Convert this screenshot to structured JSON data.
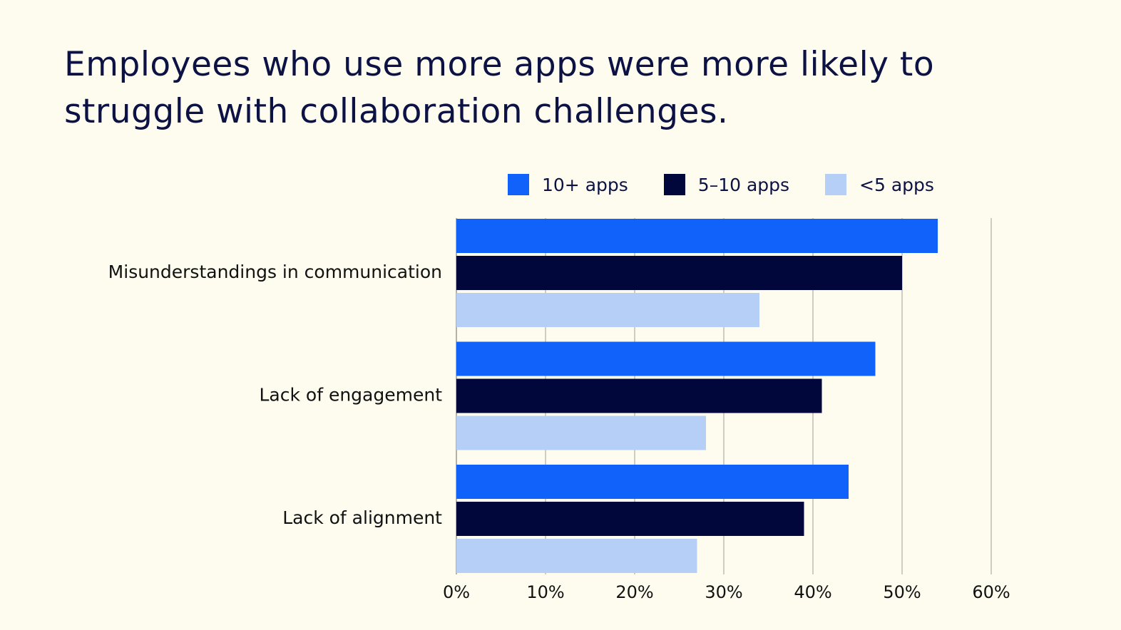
{
  "title": "Employees who use more apps were more likely to struggle with collaboration challenges.",
  "colors": {
    "background": "#fdfcee",
    "grid": "#bdbdb2"
  },
  "legend": [
    {
      "label": "10+ apps",
      "color": "#1162fb"
    },
    {
      "label": "5–10 apps",
      "color": "#01073a"
    },
    {
      "label": "<5 apps",
      "color": "#b6cff6"
    }
  ],
  "chart_data": {
    "type": "bar",
    "orientation": "horizontal",
    "categories": [
      "Misunderstandings in communication",
      "Lack of engagement",
      "Lack of alignment"
    ],
    "series": [
      {
        "name": "10+ apps",
        "color": "#1162fb",
        "values": [
          54,
          47,
          44
        ]
      },
      {
        "name": "5–10 apps",
        "color": "#01073a",
        "values": [
          50,
          41,
          39
        ]
      },
      {
        "name": "<5 apps",
        "color": "#b6cff6",
        "values": [
          34,
          28,
          27
        ]
      }
    ],
    "xlim": [
      0,
      60
    ],
    "xticks": [
      "0%",
      "10%",
      "20%",
      "30%",
      "40%",
      "50%",
      "60%"
    ],
    "grid": "vertical",
    "legend_position": "top"
  }
}
